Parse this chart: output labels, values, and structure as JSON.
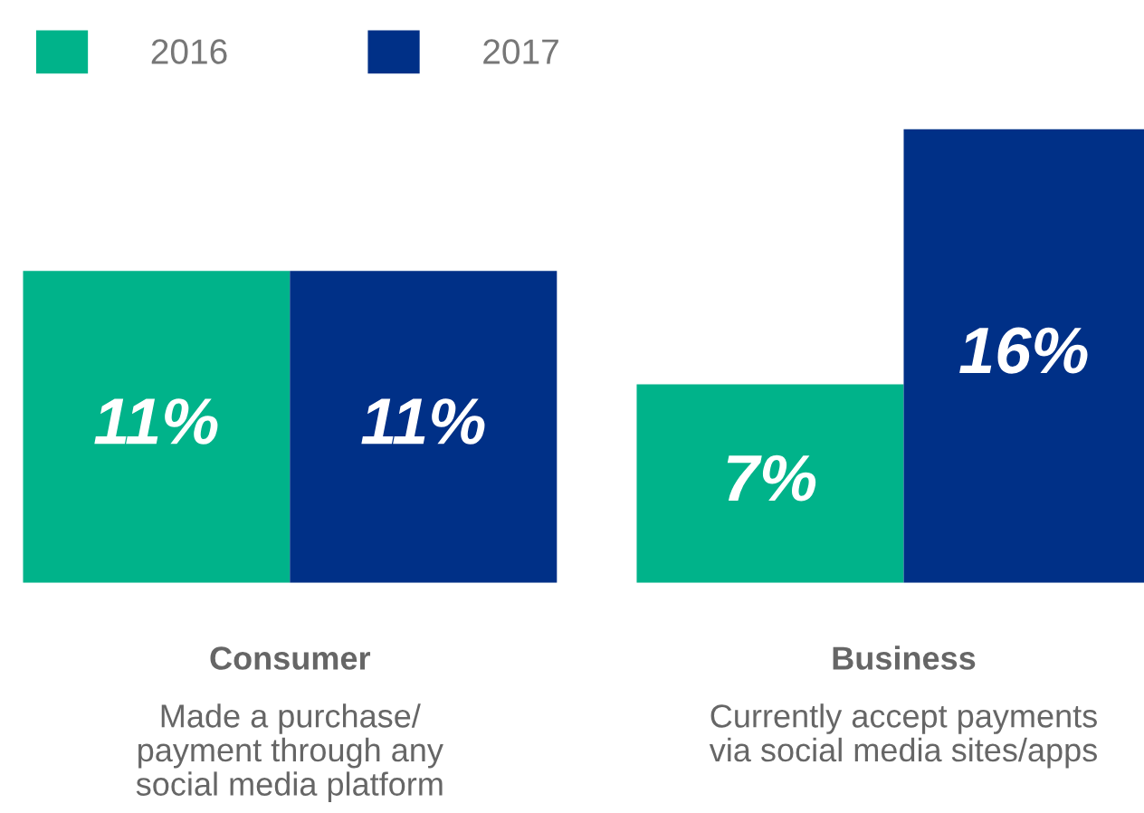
{
  "chart_data": {
    "type": "bar",
    "categories": [
      "Consumer",
      "Business"
    ],
    "series": [
      {
        "name": "2016",
        "color": "#00b38a",
        "values": [
          11,
          7
        ],
        "value_labels": [
          "11%",
          "7%"
        ]
      },
      {
        "name": "2017",
        "color": "#003087",
        "values": [
          11,
          16
        ],
        "value_labels": [
          "11%",
          "16%"
        ]
      }
    ],
    "annotations": [
      "Made a purchase/\npayment through any\nsocial media platform",
      "Currently accept payments\nvia social media sites/apps"
    ],
    "legend": "top left",
    "grid": false
  }
}
